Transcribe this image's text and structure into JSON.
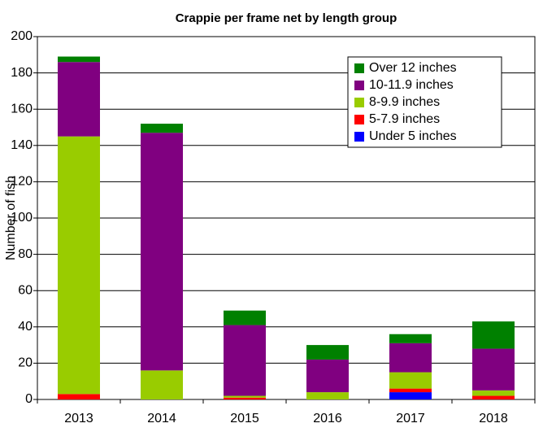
{
  "chart_data": {
    "type": "stacked_bar",
    "title": "Crappie per frame net by length group",
    "ylabel": "Number of fish",
    "categories": [
      "2013",
      "2014",
      "2015",
      "2016",
      "2017",
      "2018"
    ],
    "series": [
      {
        "name": "Under 5 inches",
        "color": "#0000ff",
        "values": [
          0,
          0,
          0,
          0,
          4,
          0
        ]
      },
      {
        "name": "5-7.9 inches",
        "color": "#ff0000",
        "values": [
          3,
          0,
          1,
          0,
          2,
          2
        ]
      },
      {
        "name": "8-9.9 inches",
        "color": "#99cc00",
        "values": [
          142,
          16,
          1,
          4,
          9,
          3
        ]
      },
      {
        "name": "10-11.9 inches",
        "color": "#800080",
        "values": [
          41,
          131,
          39,
          18,
          16,
          23
        ]
      },
      {
        "name": "Over 12 inches",
        "color": "#008000",
        "values": [
          3,
          5,
          8,
          8,
          5,
          15
        ]
      }
    ],
    "ylim": [
      0,
      200
    ],
    "yticks": [
      0,
      20,
      40,
      60,
      80,
      100,
      120,
      140,
      160,
      180,
      200
    ],
    "grid": true,
    "legend": "upper right"
  }
}
